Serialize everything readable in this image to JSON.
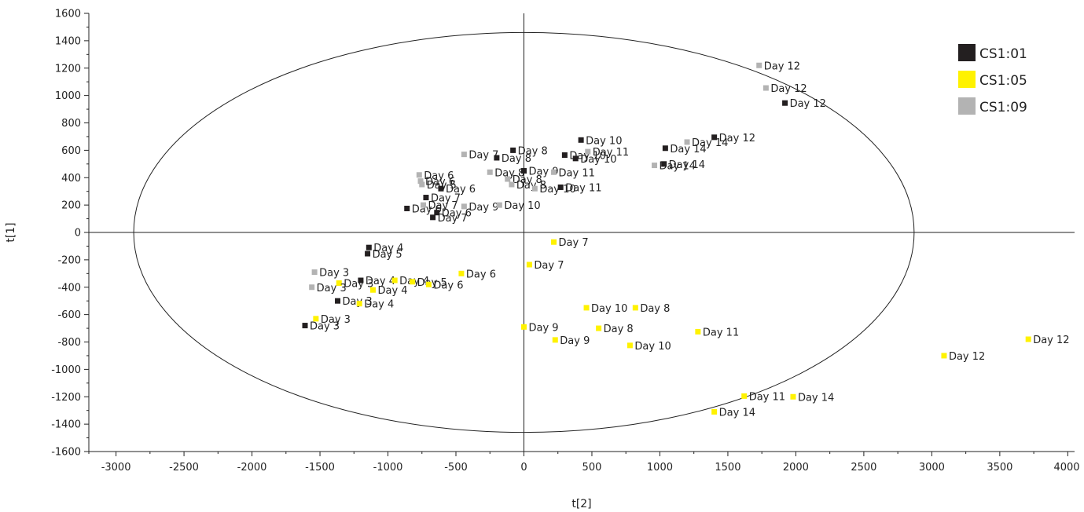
{
  "chart_data": {
    "type": "scatter",
    "xlabel": "t[2]",
    "ylabel": "t[1]",
    "xlim": [
      -3200,
      4050
    ],
    "ylim": [
      -1600,
      1600
    ],
    "xticks": [
      -3000,
      -2500,
      -2000,
      -1500,
      -1000,
      -500,
      0,
      500,
      1000,
      1500,
      2000,
      2500,
      3000,
      3500,
      4000
    ],
    "yticks": [
      -1600,
      -1400,
      -1200,
      -1000,
      -800,
      -600,
      -400,
      -200,
      0,
      200,
      400,
      600,
      800,
      1000,
      1200,
      1400,
      1600
    ],
    "ellipse": {
      "rx": 2870,
      "ry": 1460
    },
    "grid": false,
    "legend_position": "top-right",
    "series": [
      {
        "name": "CS1:01",
        "color": "#231f20",
        "points": [
          {
            "x": -1610,
            "y": -680,
            "label": "Day 3"
          },
          {
            "x": -1370,
            "y": -500,
            "label": "Day 3"
          },
          {
            "x": -1140,
            "y": -110,
            "label": "Day 4"
          },
          {
            "x": -1200,
            "y": -350,
            "label": "Day 4"
          },
          {
            "x": -1150,
            "y": -155,
            "label": "Day 5"
          },
          {
            "x": -860,
            "y": 175,
            "label": "Day 6"
          },
          {
            "x": -610,
            "y": 320,
            "label": "Day 6"
          },
          {
            "x": -720,
            "y": 255,
            "label": "Day 7"
          },
          {
            "x": -640,
            "y": 145,
            "label": "Day 6"
          },
          {
            "x": -670,
            "y": 110,
            "label": "Day 7"
          },
          {
            "x": -80,
            "y": 600,
            "label": "Day 8"
          },
          {
            "x": -200,
            "y": 545,
            "label": "Day 8"
          },
          {
            "x": 0,
            "y": 450,
            "label": "Day 9"
          },
          {
            "x": 270,
            "y": 330,
            "label": "Day 11"
          },
          {
            "x": 420,
            "y": 675,
            "label": "Day 10"
          },
          {
            "x": 300,
            "y": 565,
            "label": "Day 10"
          },
          {
            "x": 380,
            "y": 540,
            "label": "Day 10"
          },
          {
            "x": 1030,
            "y": 500,
            "label": "Day 14"
          },
          {
            "x": 1040,
            "y": 615,
            "label": "Day 14"
          },
          {
            "x": 1400,
            "y": 695,
            "label": "Day 12"
          },
          {
            "x": 1920,
            "y": 945,
            "label": "Day 12"
          }
        ]
      },
      {
        "name": "CS1:05",
        "color": "#fff200",
        "points": [
          {
            "x": -1530,
            "y": -630,
            "label": "Day 3"
          },
          {
            "x": -1360,
            "y": -370,
            "label": "Day 3"
          },
          {
            "x": -1210,
            "y": -520,
            "label": "Day 4"
          },
          {
            "x": -1110,
            "y": -420,
            "label": "Day 4"
          },
          {
            "x": -950,
            "y": -350,
            "label": "Day 4"
          },
          {
            "x": -820,
            "y": -360,
            "label": "Day 5"
          },
          {
            "x": -700,
            "y": -380,
            "label": "Day 6"
          },
          {
            "x": -460,
            "y": -300,
            "label": "Day 6"
          },
          {
            "x": 220,
            "y": -70,
            "label": "Day 7"
          },
          {
            "x": 40,
            "y": -235,
            "label": "Day 7"
          },
          {
            "x": 460,
            "y": -550,
            "label": "Day 10"
          },
          {
            "x": 820,
            "y": -550,
            "label": "Day 8"
          },
          {
            "x": 0,
            "y": -690,
            "label": "Day 9"
          },
          {
            "x": 230,
            "y": -785,
            "label": "Day 9"
          },
          {
            "x": 550,
            "y": -700,
            "label": "Day 8"
          },
          {
            "x": 780,
            "y": -825,
            "label": "Day 10"
          },
          {
            "x": 1280,
            "y": -725,
            "label": "Day 11"
          },
          {
            "x": 1620,
            "y": -1195,
            "label": "Day 11"
          },
          {
            "x": 1980,
            "y": -1200,
            "label": "Day 14"
          },
          {
            "x": 1400,
            "y": -1310,
            "label": "Day 14"
          },
          {
            "x": 3090,
            "y": -900,
            "label": "Day 12"
          },
          {
            "x": 3710,
            "y": -780,
            "label": "Day 12"
          }
        ]
      },
      {
        "name": "CS1:09",
        "color": "#b3b3b3",
        "points": [
          {
            "x": -1540,
            "y": -290,
            "label": "Day 3"
          },
          {
            "x": -1560,
            "y": -400,
            "label": "Day 3"
          },
          {
            "x": -770,
            "y": 420,
            "label": "Day 6"
          },
          {
            "x": -760,
            "y": 375,
            "label": "Day 6"
          },
          {
            "x": -750,
            "y": 350,
            "label": "Day 5"
          },
          {
            "x": -740,
            "y": 200,
            "label": "Day 7"
          },
          {
            "x": -440,
            "y": 190,
            "label": "Day 9"
          },
          {
            "x": -180,
            "y": 200,
            "label": "Day 10"
          },
          {
            "x": -440,
            "y": 570,
            "label": "Day 7"
          },
          {
            "x": -250,
            "y": 440,
            "label": "Day 8"
          },
          {
            "x": -120,
            "y": 390,
            "label": "Day 8"
          },
          {
            "x": -90,
            "y": 350,
            "label": "Day 8"
          },
          {
            "x": 220,
            "y": 440,
            "label": "Day 11"
          },
          {
            "x": 80,
            "y": 320,
            "label": "Day 10"
          },
          {
            "x": 470,
            "y": 590,
            "label": "Day 11"
          },
          {
            "x": 960,
            "y": 490,
            "label": "Day 14"
          },
          {
            "x": 1200,
            "y": 660,
            "label": "Day 14"
          },
          {
            "x": 1730,
            "y": 1220,
            "label": "Day 12"
          },
          {
            "x": 1780,
            "y": 1055,
            "label": "Day 12"
          }
        ]
      }
    ]
  }
}
